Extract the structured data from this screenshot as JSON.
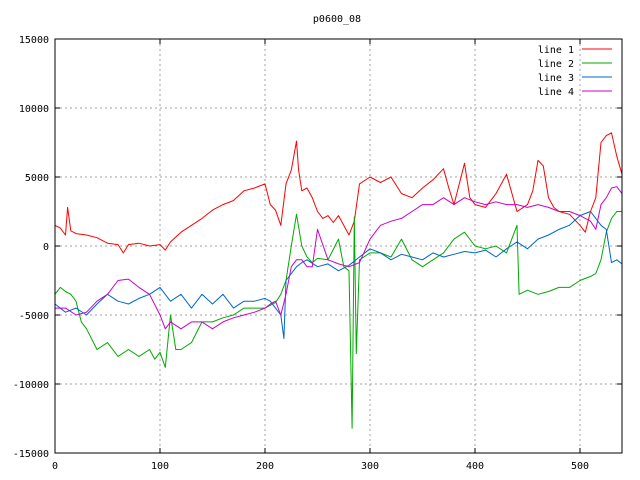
{
  "chart_data": {
    "type": "line",
    "title": "p0600_08",
    "xlabel": "",
    "ylabel": "",
    "xlim": [
      0,
      540
    ],
    "ylim": [
      -15000,
      15000
    ],
    "xticks": [
      0,
      100,
      200,
      300,
      400,
      500
    ],
    "yticks": [
      -15000,
      -10000,
      -5000,
      0,
      5000,
      10000,
      15000
    ],
    "grid": true,
    "legend_position": "top-right",
    "series": [
      {
        "name": "line 1",
        "color": "#ff0000",
        "x": [
          0,
          5,
          10,
          12,
          15,
          20,
          30,
          40,
          50,
          60,
          65,
          70,
          80,
          90,
          100,
          105,
          110,
          120,
          130,
          140,
          150,
          160,
          170,
          180,
          190,
          200,
          205,
          210,
          215,
          220,
          225,
          230,
          232,
          235,
          240,
          245,
          250,
          255,
          260,
          265,
          270,
          280,
          285,
          290,
          300,
          310,
          320,
          330,
          340,
          350,
          360,
          370,
          375,
          380,
          390,
          395,
          400,
          410,
          420,
          430,
          440,
          450,
          455,
          460,
          465,
          470,
          475,
          480,
          490,
          500,
          505,
          510,
          515,
          520,
          525,
          530,
          535,
          540
        ],
        "y": [
          1500,
          1300,
          800,
          2800,
          1100,
          900,
          800,
          600,
          200,
          100,
          -500,
          100,
          200,
          0,
          100,
          -300,
          300,
          1000,
          1500,
          2000,
          2600,
          3000,
          3300,
          4000,
          4200,
          4500,
          3000,
          2600,
          1500,
          4500,
          5500,
          7600,
          5500,
          4000,
          4200,
          3500,
          2500,
          2000,
          2200,
          1700,
          2200,
          800,
          1800,
          4500,
          5000,
          4600,
          5000,
          3800,
          3500,
          4200,
          4800,
          5600,
          4200,
          3000,
          6000,
          3500,
          3000,
          2800,
          3800,
          5200,
          2500,
          3000,
          4000,
          6200,
          5800,
          3500,
          2800,
          2500,
          2300,
          1500,
          1000,
          2500,
          3500,
          7500,
          8000,
          8200,
          6500,
          5200
        ]
      },
      {
        "name": "line 2",
        "color": "#00aa00",
        "x": [
          0,
          5,
          10,
          15,
          20,
          25,
          30,
          40,
          50,
          60,
          70,
          80,
          90,
          95,
          100,
          105,
          110,
          115,
          120,
          130,
          140,
          150,
          160,
          170,
          180,
          190,
          200,
          205,
          210,
          215,
          220,
          225,
          230,
          235,
          240,
          245,
          250,
          260,
          270,
          275,
          280,
          283,
          285,
          287,
          290,
          300,
          310,
          320,
          330,
          340,
          350,
          360,
          370,
          380,
          390,
          400,
          410,
          420,
          430,
          440,
          442,
          450,
          460,
          470,
          480,
          490,
          500,
          510,
          515,
          520,
          525,
          530,
          535,
          540
        ],
        "y": [
          -3500,
          -3000,
          -3300,
          -3500,
          -4000,
          -5500,
          -6000,
          -7500,
          -7000,
          -8000,
          -7500,
          -8000,
          -7500,
          -8200,
          -7700,
          -8800,
          -5000,
          -7500,
          -7500,
          -7000,
          -5500,
          -5500,
          -5200,
          -5000,
          -4500,
          -4500,
          -4500,
          -4300,
          -4100,
          -3500,
          -2500,
          0,
          2300,
          0,
          -800,
          -1200,
          -900,
          -1000,
          500,
          -1500,
          -1800,
          -13200,
          2100,
          -7800,
          -1000,
          -500,
          -500,
          -800,
          500,
          -1000,
          -1500,
          -1000,
          -500,
          500,
          1000,
          0,
          -200,
          0,
          -500,
          1500,
          -3500,
          -3200,
          -3500,
          -3300,
          -3000,
          -3000,
          -2500,
          -2200,
          -2000,
          -1000,
          1000,
          2000,
          2500,
          2500
        ]
      },
      {
        "name": "line 3",
        "color": "#0066cc",
        "x": [
          0,
          10,
          20,
          30,
          40,
          50,
          60,
          70,
          80,
          90,
          100,
          110,
          120,
          130,
          140,
          150,
          160,
          170,
          180,
          190,
          200,
          205,
          210,
          215,
          218,
          220,
          225,
          230,
          235,
          240,
          250,
          260,
          270,
          280,
          290,
          300,
          310,
          320,
          330,
          340,
          350,
          360,
          370,
          380,
          390,
          400,
          410,
          420,
          430,
          440,
          450,
          460,
          470,
          480,
          490,
          500,
          510,
          515,
          520,
          525,
          530,
          535,
          540
        ],
        "y": [
          -4200,
          -4800,
          -4500,
          -5000,
          -4200,
          -3500,
          -4000,
          -4200,
          -3800,
          -3500,
          -3000,
          -4000,
          -3500,
          -4500,
          -3500,
          -4200,
          -3500,
          -4500,
          -4000,
          -4000,
          -3800,
          -4000,
          -4500,
          -5000,
          -6700,
          -2500,
          -2000,
          -1500,
          -1200,
          -1000,
          -1500,
          -1300,
          -1800,
          -1400,
          -800,
          -200,
          -500,
          -1000,
          -600,
          -800,
          -1000,
          -500,
          -800,
          -600,
          -400,
          -500,
          -300,
          -800,
          -200,
          300,
          -200,
          500,
          800,
          1200,
          1500,
          2200,
          2500,
          2000,
          1500,
          1200,
          -1200,
          -1000,
          -1300
        ]
      },
      {
        "name": "line 4",
        "color": "#cc00cc",
        "x": [
          0,
          10,
          20,
          30,
          40,
          50,
          60,
          70,
          80,
          90,
          100,
          105,
          110,
          120,
          130,
          140,
          150,
          160,
          170,
          180,
          190,
          200,
          205,
          210,
          215,
          220,
          225,
          230,
          235,
          240,
          245,
          250,
          260,
          270,
          280,
          290,
          300,
          310,
          320,
          330,
          340,
          350,
          360,
          370,
          380,
          390,
          400,
          410,
          420,
          430,
          440,
          450,
          460,
          470,
          480,
          490,
          500,
          510,
          515,
          520,
          525,
          530,
          535,
          540
        ],
        "y": [
          -4500,
          -4500,
          -5000,
          -4800,
          -4000,
          -3500,
          -2500,
          -2400,
          -3000,
          -3500,
          -5000,
          -6000,
          -5500,
          -6000,
          -5500,
          -5500,
          -6000,
          -5500,
          -5200,
          -5000,
          -4800,
          -4500,
          -4200,
          -4000,
          -5000,
          -3500,
          -1500,
          -1000,
          -1000,
          -1500,
          -1500,
          1200,
          -1000,
          -1300,
          -1500,
          -1200,
          500,
          1500,
          1800,
          2000,
          2500,
          3000,
          3000,
          3500,
          3000,
          3500,
          3200,
          3000,
          3200,
          3000,
          3000,
          2800,
          3000,
          2800,
          2500,
          2500,
          2200,
          1800,
          1200,
          3000,
          3500,
          4200,
          4300,
          3800
        ]
      }
    ]
  }
}
